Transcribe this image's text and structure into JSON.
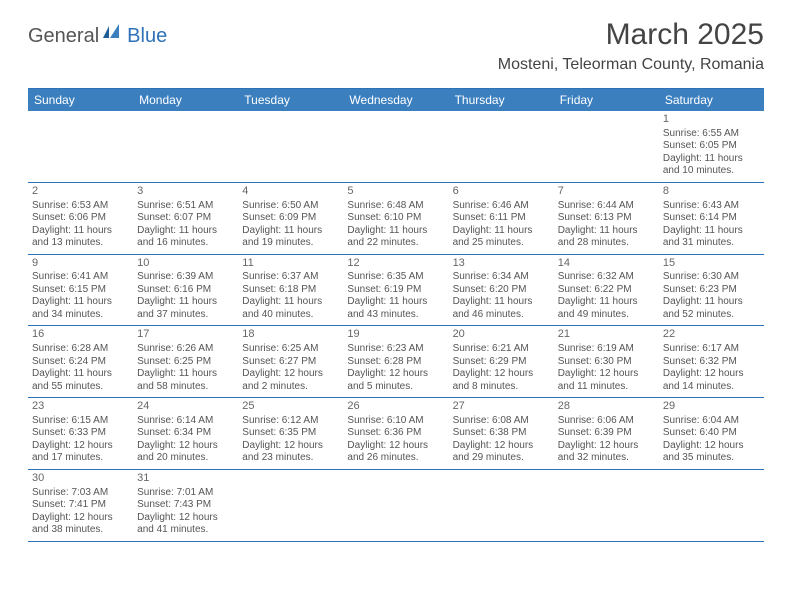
{
  "logo": {
    "general": "General",
    "blue": "Blue"
  },
  "title": "March 2025",
  "location": "Mosteni, Teleorman County, Romania",
  "day_names": [
    "Sunday",
    "Monday",
    "Tuesday",
    "Wednesday",
    "Thursday",
    "Friday",
    "Saturday"
  ],
  "colors": {
    "header_bg": "#3b7fbf",
    "header_text": "#ffffff",
    "border": "#2d72b8",
    "text": "#555555",
    "title": "#444444"
  },
  "weeks": [
    [
      null,
      null,
      null,
      null,
      null,
      null,
      {
        "n": "1",
        "sunrise": "6:55 AM",
        "sunset": "6:05 PM",
        "day_h": 11,
        "day_m": 10
      }
    ],
    [
      {
        "n": "2",
        "sunrise": "6:53 AM",
        "sunset": "6:06 PM",
        "day_h": 11,
        "day_m": 13
      },
      {
        "n": "3",
        "sunrise": "6:51 AM",
        "sunset": "6:07 PM",
        "day_h": 11,
        "day_m": 16
      },
      {
        "n": "4",
        "sunrise": "6:50 AM",
        "sunset": "6:09 PM",
        "day_h": 11,
        "day_m": 19
      },
      {
        "n": "5",
        "sunrise": "6:48 AM",
        "sunset": "6:10 PM",
        "day_h": 11,
        "day_m": 22
      },
      {
        "n": "6",
        "sunrise": "6:46 AM",
        "sunset": "6:11 PM",
        "day_h": 11,
        "day_m": 25
      },
      {
        "n": "7",
        "sunrise": "6:44 AM",
        "sunset": "6:13 PM",
        "day_h": 11,
        "day_m": 28
      },
      {
        "n": "8",
        "sunrise": "6:43 AM",
        "sunset": "6:14 PM",
        "day_h": 11,
        "day_m": 31
      }
    ],
    [
      {
        "n": "9",
        "sunrise": "6:41 AM",
        "sunset": "6:15 PM",
        "day_h": 11,
        "day_m": 34
      },
      {
        "n": "10",
        "sunrise": "6:39 AM",
        "sunset": "6:16 PM",
        "day_h": 11,
        "day_m": 37
      },
      {
        "n": "11",
        "sunrise": "6:37 AM",
        "sunset": "6:18 PM",
        "day_h": 11,
        "day_m": 40
      },
      {
        "n": "12",
        "sunrise": "6:35 AM",
        "sunset": "6:19 PM",
        "day_h": 11,
        "day_m": 43
      },
      {
        "n": "13",
        "sunrise": "6:34 AM",
        "sunset": "6:20 PM",
        "day_h": 11,
        "day_m": 46
      },
      {
        "n": "14",
        "sunrise": "6:32 AM",
        "sunset": "6:22 PM",
        "day_h": 11,
        "day_m": 49
      },
      {
        "n": "15",
        "sunrise": "6:30 AM",
        "sunset": "6:23 PM",
        "day_h": 11,
        "day_m": 52
      }
    ],
    [
      {
        "n": "16",
        "sunrise": "6:28 AM",
        "sunset": "6:24 PM",
        "day_h": 11,
        "day_m": 55
      },
      {
        "n": "17",
        "sunrise": "6:26 AM",
        "sunset": "6:25 PM",
        "day_h": 11,
        "day_m": 58
      },
      {
        "n": "18",
        "sunrise": "6:25 AM",
        "sunset": "6:27 PM",
        "day_h": 12,
        "day_m": 2
      },
      {
        "n": "19",
        "sunrise": "6:23 AM",
        "sunset": "6:28 PM",
        "day_h": 12,
        "day_m": 5
      },
      {
        "n": "20",
        "sunrise": "6:21 AM",
        "sunset": "6:29 PM",
        "day_h": 12,
        "day_m": 8
      },
      {
        "n": "21",
        "sunrise": "6:19 AM",
        "sunset": "6:30 PM",
        "day_h": 12,
        "day_m": 11
      },
      {
        "n": "22",
        "sunrise": "6:17 AM",
        "sunset": "6:32 PM",
        "day_h": 12,
        "day_m": 14
      }
    ],
    [
      {
        "n": "23",
        "sunrise": "6:15 AM",
        "sunset": "6:33 PM",
        "day_h": 12,
        "day_m": 17
      },
      {
        "n": "24",
        "sunrise": "6:14 AM",
        "sunset": "6:34 PM",
        "day_h": 12,
        "day_m": 20
      },
      {
        "n": "25",
        "sunrise": "6:12 AM",
        "sunset": "6:35 PM",
        "day_h": 12,
        "day_m": 23
      },
      {
        "n": "26",
        "sunrise": "6:10 AM",
        "sunset": "6:36 PM",
        "day_h": 12,
        "day_m": 26
      },
      {
        "n": "27",
        "sunrise": "6:08 AM",
        "sunset": "6:38 PM",
        "day_h": 12,
        "day_m": 29
      },
      {
        "n": "28",
        "sunrise": "6:06 AM",
        "sunset": "6:39 PM",
        "day_h": 12,
        "day_m": 32
      },
      {
        "n": "29",
        "sunrise": "6:04 AM",
        "sunset": "6:40 PM",
        "day_h": 12,
        "day_m": 35
      }
    ],
    [
      {
        "n": "30",
        "sunrise": "7:03 AM",
        "sunset": "7:41 PM",
        "day_h": 12,
        "day_m": 38
      },
      {
        "n": "31",
        "sunrise": "7:01 AM",
        "sunset": "7:43 PM",
        "day_h": 12,
        "day_m": 41
      },
      null,
      null,
      null,
      null,
      null
    ]
  ]
}
